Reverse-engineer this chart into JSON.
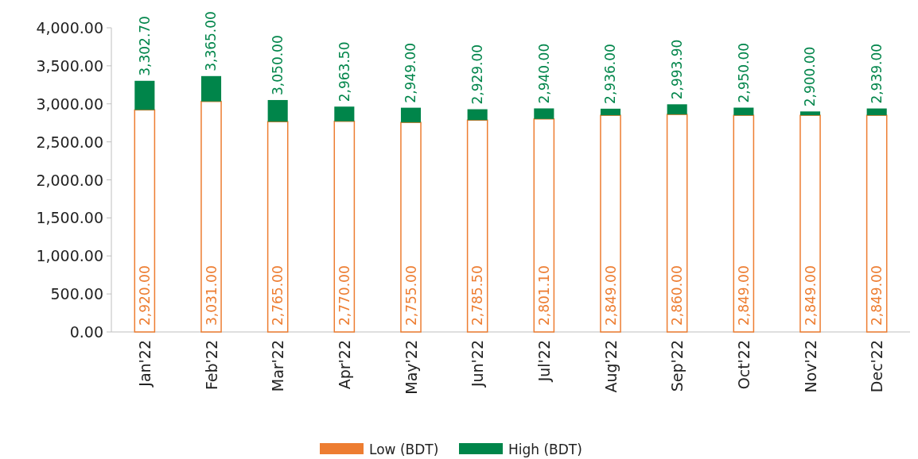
{
  "chart_data": {
    "type": "bar",
    "stacked": true,
    "totals": [
      "3,302.70",
      "3,365.00",
      "3,050.00",
      "2,963.50",
      "2,949.00",
      "2,929.00",
      "2,940.00",
      "2,936.00",
      "2,993.90",
      "2,950.00",
      "2,900.00",
      "2,939.00"
    ],
    "categories": [
      "Jan'22",
      "Feb'22",
      "Mar'22",
      "Apr'22",
      "May'22",
      "Jun'22",
      "Jul'22",
      "Aug'22",
      "Sep'22",
      "Oct'22",
      "Nov'22",
      "Dec'22"
    ],
    "series": [
      {
        "name": "Low (BDT)",
        "color": "#ed7d31",
        "values": [
          2920,
          3031,
          2765,
          2770,
          2755,
          2785.5,
          2801.1,
          2849,
          2860,
          2849,
          2849,
          2849
        ],
        "value_labels": [
          "2,920.00",
          "3,031.00",
          "2,765.00",
          "2,770.00",
          "2,755.00",
          "2,785.50",
          "2,801.10",
          "2,849.00",
          "2,860.00",
          "2,849.00",
          "2,849.00",
          "2,849.00"
        ]
      },
      {
        "name": "High (BDT)",
        "color": "#00854a",
        "values": [
          382.7,
          334,
          285,
          193.5,
          194,
          143.5,
          138.9,
          87,
          133.9,
          101,
          51,
          90
        ]
      }
    ],
    "ylim": [
      0,
      4000
    ],
    "yticks": [
      {
        "value": 0,
        "label": "0.00"
      },
      {
        "value": 500,
        "label": "500.00"
      },
      {
        "value": 1000,
        "label": "1,000.00"
      },
      {
        "value": 1500,
        "label": "1,500.00"
      },
      {
        "value": 2000,
        "label": "2,000.00"
      },
      {
        "value": 2500,
        "label": "2,500.00"
      },
      {
        "value": 3000,
        "label": "3,000.00"
      },
      {
        "value": 3500,
        "label": "3,500.00"
      },
      {
        "value": 4000,
        "label": "4,000.00"
      }
    ],
    "legend": "bottom"
  }
}
